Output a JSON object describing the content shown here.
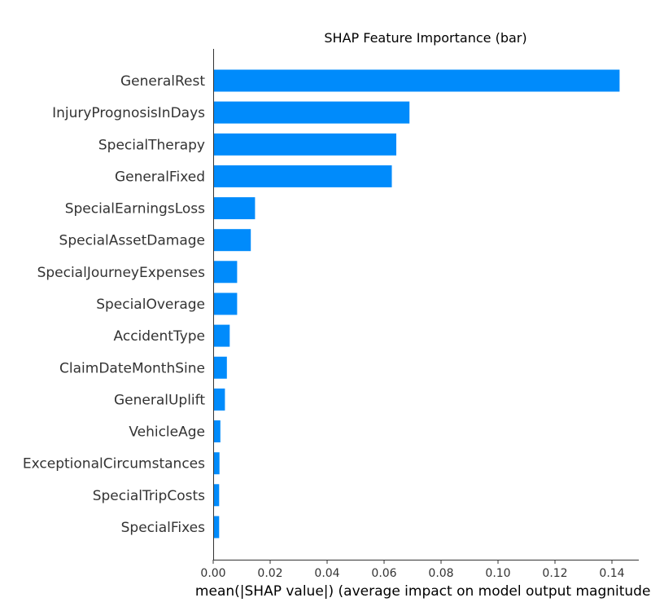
{
  "chart_data": {
    "type": "bar",
    "orientation": "horizontal",
    "title": "SHAP Feature Importance (bar)",
    "xlabel": "mean(|SHAP value|) (average impact on model output magnitude)",
    "ylabel": "",
    "categories": [
      "GeneralRest",
      "InjuryPrognosisInDays",
      "SpecialTherapy",
      "GeneralFixed",
      "SpecialEarningsLoss",
      "SpecialAssetDamage",
      "SpecialJourneyExpenses",
      "SpecialOverage",
      "AccidentType",
      "ClaimDateMonthSine",
      "GeneralUplift",
      "VehicleAge",
      "ExceptionalCircumstances",
      "SpecialTripCosts",
      "SpecialFixes"
    ],
    "values": [
      0.1427,
      0.0689,
      0.0643,
      0.0627,
      0.0147,
      0.0132,
      0.0084,
      0.0084,
      0.0058,
      0.0048,
      0.0041,
      0.0025,
      0.0022,
      0.0021,
      0.0021
    ],
    "xticks": [
      "0.00",
      "0.02",
      "0.04",
      "0.06",
      "0.08",
      "0.10",
      "0.12",
      "0.14"
    ],
    "xtick_values": [
      0,
      0.02,
      0.04,
      0.06,
      0.08,
      0.1,
      0.12,
      0.14
    ],
    "xlim": [
      0,
      0.15
    ],
    "grid": false,
    "legend": "none",
    "bar_color": "#008bfb"
  }
}
